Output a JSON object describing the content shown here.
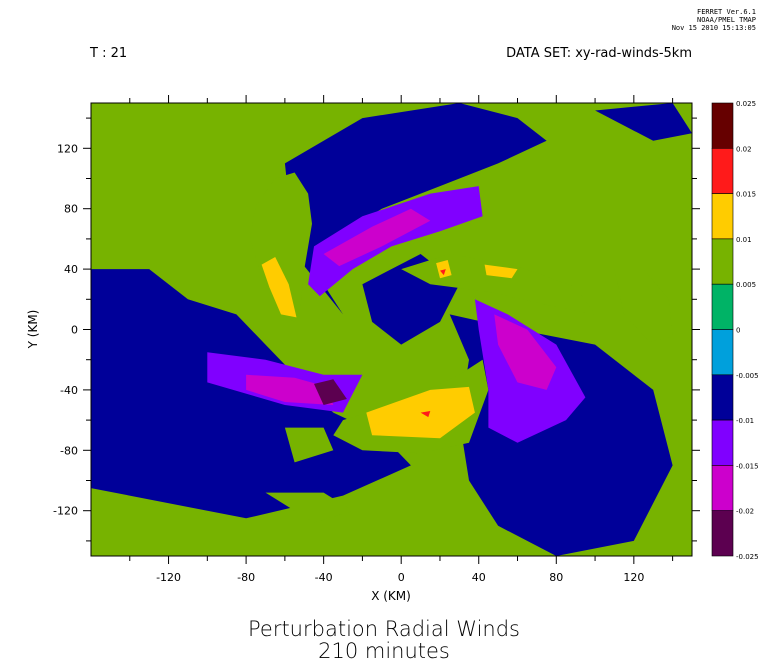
{
  "header": {
    "stamp_lines": [
      "FERRET  Ver.6.1",
      "NOAA/PMEL TMAP",
      "Nov 15 2010 15:13:05"
    ],
    "time_label": "T : 21",
    "dataset_label": "DATA SET: xy-rad-winds-5km"
  },
  "title_lines": [
    "Perturbation Radial Winds",
    "210 minutes"
  ],
  "chart_data": {
    "type": "heatmap",
    "title": "Perturbation Radial Winds\n210 minutes",
    "xlabel": "X (KM)",
    "ylabel": "Y (KM)",
    "xlim": [
      -160,
      150
    ],
    "ylim": [
      -150,
      150
    ],
    "x_ticks": [
      -120,
      -80,
      -40,
      0,
      40,
      80,
      120
    ],
    "y_ticks": [
      120,
      80,
      40,
      0,
      -40,
      -80,
      -120
    ],
    "colorbar": {
      "levels": [
        0.025,
        0.02,
        0.015,
        0.01,
        0.005,
        0,
        -0.005,
        -0.01,
        -0.015,
        -0.02,
        -0.025
      ],
      "level_labels": [
        "0.025",
        "0.02",
        "0.015",
        "0.01",
        "0.005",
        "0",
        "-0.005",
        "-0.01",
        "-0.015",
        "-0.02",
        "-0.025"
      ],
      "colors": [
        "#660000",
        "#ff1a1a",
        "#ffcc00",
        "#77b300",
        "#00b366",
        "#00a0dc",
        "#000099",
        "#8000ff",
        "#cc00cc",
        "#5c0050"
      ]
    },
    "regions": [
      {
        "level": -0.005,
        "points": [
          [
            -160,
            40
          ],
          [
            -130,
            40
          ],
          [
            -110,
            20
          ],
          [
            -85,
            10
          ],
          [
            -70,
            -10
          ],
          [
            -55,
            -30
          ],
          [
            -35,
            -55
          ],
          [
            -10,
            -70
          ],
          [
            5,
            -90
          ],
          [
            -30,
            -110
          ],
          [
            -80,
            -125
          ],
          [
            -160,
            -105
          ]
        ]
      },
      {
        "level": -0.005,
        "points": [
          [
            -60,
            110
          ],
          [
            -20,
            140
          ],
          [
            30,
            150
          ],
          [
            60,
            140
          ],
          [
            75,
            125
          ],
          [
            50,
            110
          ],
          [
            20,
            95
          ],
          [
            -10,
            80
          ],
          [
            -35,
            60
          ],
          [
            -40,
            30
          ],
          [
            -30,
            10
          ],
          [
            -55,
            50
          ]
        ]
      },
      {
        "level": -0.005,
        "points": [
          [
            25,
            10
          ],
          [
            60,
            0
          ],
          [
            100,
            -10
          ],
          [
            130,
            -40
          ],
          [
            140,
            -90
          ],
          [
            120,
            -140
          ],
          [
            80,
            -150
          ],
          [
            50,
            -130
          ],
          [
            35,
            -100
          ],
          [
            30,
            -60
          ],
          [
            35,
            -20
          ]
        ]
      },
      {
        "level": -0.005,
        "points": [
          [
            -20,
            30
          ],
          [
            10,
            50
          ],
          [
            30,
            30
          ],
          [
            20,
            5
          ],
          [
            0,
            -10
          ],
          [
            -15,
            5
          ]
        ]
      },
      {
        "level": -0.005,
        "points": [
          [
            100,
            145
          ],
          [
            140,
            150
          ],
          [
            150,
            130
          ],
          [
            130,
            125
          ]
        ]
      },
      {
        "level": 0.005,
        "points": [
          [
            -65,
            100
          ],
          [
            -55,
            104
          ],
          [
            -48,
            90
          ],
          [
            -46,
            70
          ],
          [
            -50,
            40
          ],
          [
            -52,
            15
          ],
          [
            -55,
            5
          ],
          [
            -62,
            10
          ],
          [
            -72,
            35
          ],
          [
            -78,
            60
          ],
          [
            -75,
            82
          ]
        ]
      },
      {
        "level": 0.005,
        "points": [
          [
            0,
            40
          ],
          [
            25,
            50
          ],
          [
            60,
            42
          ],
          [
            90,
            28
          ],
          [
            100,
            10
          ],
          [
            80,
            15
          ],
          [
            45,
            25
          ],
          [
            15,
            30
          ]
        ]
      },
      {
        "level": 0.005,
        "points": [
          [
            110,
            40
          ],
          [
            125,
            40
          ],
          [
            138,
            20
          ],
          [
            140,
            -5
          ],
          [
            128,
            -8
          ],
          [
            115,
            10
          ]
        ]
      },
      {
        "level": 0.005,
        "points": [
          [
            -30,
            -60
          ],
          [
            0,
            -48
          ],
          [
            30,
            -30
          ],
          [
            42,
            -20
          ],
          [
            45,
            -40
          ],
          [
            35,
            -75
          ],
          [
            10,
            -82
          ],
          [
            -20,
            -80
          ],
          [
            -35,
            -70
          ]
        ]
      },
      {
        "level": 0.005,
        "points": [
          [
            -60,
            -65
          ],
          [
            -40,
            -65
          ],
          [
            -35,
            -80
          ],
          [
            -55,
            -88
          ]
        ]
      },
      {
        "level": 0.005,
        "points": [
          [
            -70,
            -108
          ],
          [
            -40,
            -108
          ],
          [
            -25,
            -120
          ],
          [
            -45,
            -128
          ]
        ]
      },
      {
        "level": 0.01,
        "points": [
          [
            -72,
            43
          ],
          [
            -65,
            48
          ],
          [
            -58,
            30
          ],
          [
            -54,
            8
          ],
          [
            -62,
            10
          ],
          [
            -68,
            28
          ]
        ]
      },
      {
        "level": 0.01,
        "points": [
          [
            -18,
            -55
          ],
          [
            15,
            -40
          ],
          [
            35,
            -38
          ],
          [
            38,
            -55
          ],
          [
            20,
            -72
          ],
          [
            -15,
            -70
          ]
        ]
      },
      {
        "level": 0.01,
        "points": [
          [
            18,
            44
          ],
          [
            24,
            46
          ],
          [
            26,
            36
          ],
          [
            20,
            34
          ]
        ]
      },
      {
        "level": 0.01,
        "points": [
          [
            43,
            43
          ],
          [
            60,
            40
          ],
          [
            57,
            34
          ],
          [
            44,
            36
          ]
        ]
      },
      {
        "level": -0.01,
        "points": [
          [
            -45,
            55
          ],
          [
            -20,
            75
          ],
          [
            15,
            90
          ],
          [
            40,
            95
          ],
          [
            42,
            75
          ],
          [
            20,
            65
          ],
          [
            -5,
            55
          ],
          [
            -25,
            40
          ],
          [
            -42,
            22
          ],
          [
            -48,
            30
          ]
        ]
      },
      {
        "level": -0.01,
        "points": [
          [
            -100,
            -15
          ],
          [
            -70,
            -20
          ],
          [
            -40,
            -30
          ],
          [
            -20,
            -30
          ],
          [
            -30,
            -55
          ],
          [
            -60,
            -50
          ],
          [
            -100,
            -35
          ]
        ]
      },
      {
        "level": -0.01,
        "points": [
          [
            38,
            20
          ],
          [
            55,
            10
          ],
          [
            80,
            -10
          ],
          [
            95,
            -45
          ],
          [
            85,
            -60
          ],
          [
            60,
            -75
          ],
          [
            45,
            -65
          ],
          [
            45,
            -40
          ],
          [
            40,
            0
          ]
        ]
      },
      {
        "level": -0.015,
        "points": [
          [
            -40,
            50
          ],
          [
            -15,
            68
          ],
          [
            5,
            80
          ],
          [
            15,
            72
          ],
          [
            -10,
            55
          ],
          [
            -32,
            42
          ]
        ]
      },
      {
        "level": -0.015,
        "points": [
          [
            -80,
            -30
          ],
          [
            -55,
            -32
          ],
          [
            -38,
            -38
          ],
          [
            -35,
            -50
          ],
          [
            -60,
            -48
          ],
          [
            -80,
            -40
          ]
        ]
      },
      {
        "level": -0.015,
        "points": [
          [
            48,
            10
          ],
          [
            65,
            0
          ],
          [
            80,
            -25
          ],
          [
            75,
            -40
          ],
          [
            60,
            -35
          ],
          [
            50,
            -10
          ]
        ]
      },
      {
        "level": -0.02,
        "points": [
          [
            -45,
            -36
          ],
          [
            -35,
            -33
          ],
          [
            -28,
            -46
          ],
          [
            -40,
            -50
          ]
        ]
      },
      {
        "level": 0.015,
        "points": [
          [
            10,
            -55
          ],
          [
            15,
            -54
          ],
          [
            14,
            -58
          ]
        ]
      },
      {
        "level": 0.015,
        "points": [
          [
            20,
            39
          ],
          [
            23,
            40
          ],
          [
            22,
            36
          ]
        ]
      }
    ]
  }
}
